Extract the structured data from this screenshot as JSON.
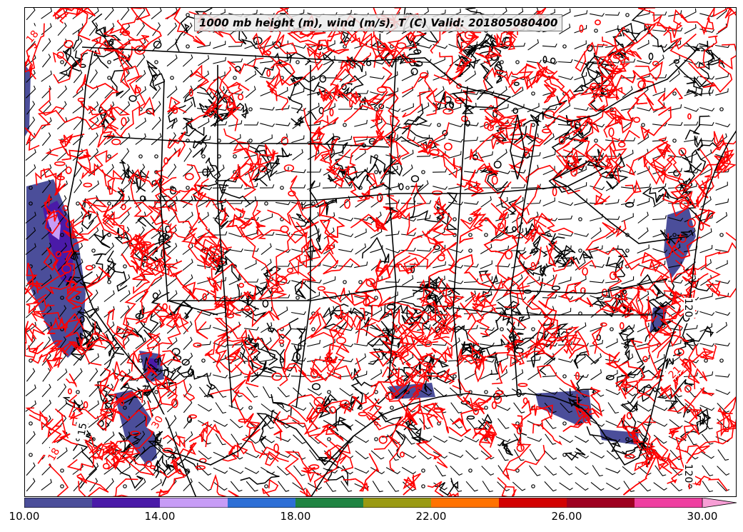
{
  "map": {
    "title": "1000 mb height (m), wind (m/s), T (C) Valid: 201805080400",
    "region": "Contiguous United States",
    "contour_labels": [
      {
        "text": "120",
        "color": "#000000"
      },
      {
        "text": "120",
        "color": "#000000"
      },
      {
        "text": "15",
        "color": "#000000"
      },
      {
        "text": "18",
        "color": "#ff0000"
      },
      {
        "text": "30",
        "color": "#ff0000"
      },
      {
        "text": "21",
        "color": "#ff0000"
      },
      {
        "text": "18",
        "color": "#ff0000"
      }
    ],
    "colors": {
      "temperature_contours": "#ff0000",
      "height_contours": "#000000",
      "borders": "#000000",
      "wind_barbs": "#000000"
    }
  },
  "colorbar": {
    "segments": [
      "#4b4e9a",
      "#4a1aa8",
      "#c79cf6",
      "#2d6fd6",
      "#1f8442",
      "#9a9a12",
      "#ff7200",
      "#d20000",
      "#9e0020",
      "#ef3ea0",
      "#f79ed5"
    ],
    "ticks": [
      "10.00",
      "14.00",
      "18.00",
      "22.00",
      "26.00",
      "30.00"
    ]
  }
}
